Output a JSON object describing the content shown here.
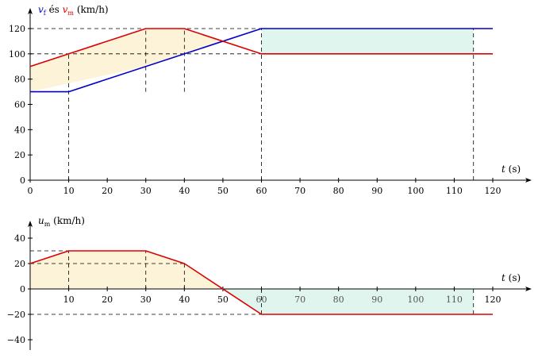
{
  "chart_data": [
    {
      "type": "line",
      "title": "",
      "ylabel_parts": [
        {
          "text": "v",
          "color": "#0000cc",
          "italic": true
        },
        {
          "text": "f",
          "color": "#0000cc",
          "sub": true
        },
        {
          "text": " és ",
          "color": "#000000"
        },
        {
          "text": "v",
          "color": "#dd0000",
          "italic": true
        },
        {
          "text": "m",
          "color": "#dd0000",
          "sub": true
        },
        {
          "text": " (km/h)",
          "color": "#000000"
        }
      ],
      "xlabel_parts": [
        {
          "text": "t",
          "italic": true
        },
        {
          "text": " (s)"
        }
      ],
      "xlim": [
        0,
        120
      ],
      "ylim": [
        0,
        120
      ],
      "x_ticks": [
        0,
        10,
        20,
        30,
        40,
        50,
        60,
        70,
        80,
        90,
        100,
        110,
        120
      ],
      "x_tick_labels": [
        "0",
        "10",
        "20",
        "30",
        "40",
        "50",
        "60",
        "70",
        "80",
        "90",
        "100",
        "110",
        "120"
      ],
      "y_ticks": [
        0,
        20,
        40,
        60,
        80,
        100,
        120
      ],
      "y_tick_labels": [
        "0",
        "20",
        "40",
        "60",
        "80",
        "100",
        "120"
      ],
      "series": [
        {
          "color": "#0000cc",
          "x": [
            0,
            10,
            60,
            120
          ],
          "y": [
            70,
            70,
            120,
            120
          ]
        },
        {
          "color": "#dd0000",
          "x": [
            0,
            30,
            40,
            60,
            120
          ],
          "y": [
            90,
            120,
            120,
            100,
            100
          ]
        }
      ],
      "shaded_regions": [
        {
          "color": "#fdf3d9",
          "x": [
            0,
            30,
            40,
            50
          ],
          "y_upper": [
            90,
            120,
            120,
            110
          ],
          "y_lower": [
            70,
            90,
            100,
            110
          ]
        },
        {
          "color": "#dff5ee",
          "x": [
            60,
            115
          ],
          "y_upper": [
            120,
            120
          ],
          "y_lower": [
            100,
            100
          ]
        }
      ],
      "guide_lines": [
        {
          "x1": 0,
          "y1": 120,
          "x2": 60,
          "y2": 120
        },
        {
          "x1": 0,
          "y1": 100,
          "x2": 60,
          "y2": 100
        },
        {
          "x1": 10,
          "y1": 0,
          "x2": 10,
          "y2": 100
        },
        {
          "x1": 30,
          "y1": 70,
          "x2": 30,
          "y2": 120
        },
        {
          "x1": 40,
          "y1": 70,
          "x2": 40,
          "y2": 120
        },
        {
          "x1": 60,
          "y1": 0,
          "x2": 60,
          "y2": 120
        },
        {
          "x1": 115,
          "y1": 0,
          "x2": 115,
          "y2": 120
        }
      ]
    },
    {
      "type": "line",
      "title": "",
      "ylabel_parts": [
        {
          "text": "u",
          "color": "#000000",
          "italic": true
        },
        {
          "text": "m",
          "color": "#000000",
          "sub": true
        },
        {
          "text": " (km/h)",
          "color": "#000000"
        }
      ],
      "xlabel_parts": [
        {
          "text": "t",
          "italic": true
        },
        {
          "text": " (s)"
        }
      ],
      "xlim": [
        0,
        120
      ],
      "ylim": [
        -40,
        40
      ],
      "x_ticks": [
        10,
        20,
        30,
        40,
        50,
        60,
        70,
        80,
        90,
        100,
        110,
        120
      ],
      "x_tick_labels": [
        "10",
        "20",
        "30",
        "40",
        "50",
        "60",
        "70",
        "80",
        "90",
        "100",
        "110",
        "120"
      ],
      "faint_from": 60,
      "y_ticks": [
        -40,
        -20,
        0,
        20,
        40
      ],
      "y_tick_labels": [
        "−40",
        "−20",
        "0",
        "20",
        "40"
      ],
      "series": [
        {
          "color": "#dd0000",
          "x": [
            0,
            10,
            30,
            40,
            60,
            120
          ],
          "y": [
            20,
            30,
            30,
            20,
            -20,
            -20
          ]
        }
      ],
      "shaded_regions": [
        {
          "color": "#fdf3d9",
          "x": [
            0,
            10,
            30,
            40,
            50
          ],
          "y_upper": [
            20,
            30,
            30,
            20,
            0
          ],
          "y_lower": [
            0,
            0,
            0,
            0,
            0
          ]
        },
        {
          "color": "#dff5ee",
          "x": [
            50,
            60,
            115
          ],
          "y_upper": [
            0,
            0,
            0
          ],
          "y_lower": [
            0,
            -20,
            -20
          ]
        }
      ],
      "guide_lines": [
        {
          "x1": 0,
          "y1": 30,
          "x2": 10,
          "y2": 30
        },
        {
          "x1": 0,
          "y1": 20,
          "x2": 40,
          "y2": 20
        },
        {
          "x1": 10,
          "y1": 0,
          "x2": 10,
          "y2": 30
        },
        {
          "x1": 30,
          "y1": 0,
          "x2": 30,
          "y2": 30
        },
        {
          "x1": 40,
          "y1": 0,
          "x2": 40,
          "y2": 20
        },
        {
          "x1": 0,
          "y1": -20,
          "x2": 60,
          "y2": -20
        },
        {
          "x1": 60,
          "y1": -20,
          "x2": 60,
          "y2": 0
        },
        {
          "x1": 115,
          "y1": -20,
          "x2": 115,
          "y2": 0
        }
      ]
    }
  ]
}
